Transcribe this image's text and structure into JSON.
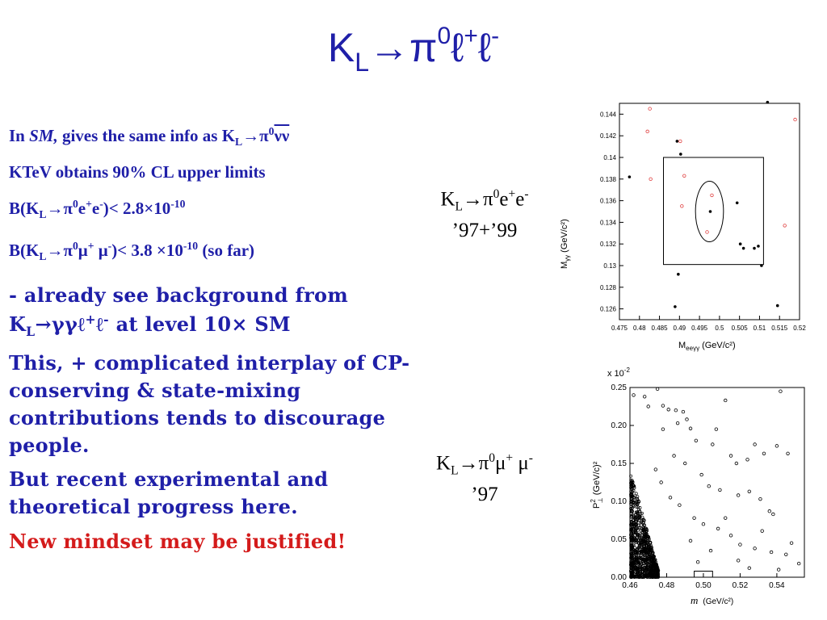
{
  "slide": {
    "title": "K_L → π⁰ ℓ⁺ ℓ⁻",
    "title_parts": {
      "k": "K",
      "k_sub": "L",
      "arrow": "→",
      "pi": "π",
      "pi_sup": "0",
      "l1": "ℓ",
      "l1_sup": "+",
      "l2": "ℓ",
      "l2_sup": "-"
    }
  },
  "body": {
    "p1": {
      "pre": "In ",
      "sm": "SM,",
      "mid": " gives the same info as K",
      "k_sub": "L",
      "arrow": "→",
      "pi": "π",
      "pi_sup": "0",
      "nu": "νν"
    },
    "p2": "KTeV obtains 90% CL upper limits",
    "p3": {
      "pre": "B(K",
      "k_sub": "L",
      "arrow": "→",
      "pi": "π",
      "pi_sup": "0",
      "e1": "e",
      "e1_sup": "+",
      "e2": "e",
      "e2_sup": "-",
      "post": ")< 2.8×10",
      "exp": "-10"
    },
    "p4": {
      "pre": "B(K",
      "k_sub": "L",
      "arrow": "→",
      "pi": "π",
      "pi_sup": "0",
      "m1": "μ",
      "m1_sup": "+",
      "m2": " μ",
      "m2_sup": "-",
      "post": ")< 3.8 ×10",
      "exp": "-10",
      "tail": " (so far)"
    },
    "p5": {
      "line1": " - already see background from",
      "k": "K",
      "k_sub": "L",
      "arrow": "→",
      "gg": "γγℓ",
      "gg_sup": "+",
      "l2": "ℓ",
      "l2_sup": "-",
      "post": " at level 10× SM"
    },
    "p6": "This, + complicated interplay of CP-conserving & state-mixing contributions tends to discourage people.",
    "p7": "But recent experimental and theoretical progress here.",
    "p8": "New mindset may be justified!"
  },
  "labels": {
    "ee": {
      "k": "K",
      "k_sub": "L",
      "arrow": "→",
      "pi": "π",
      "pi_sup": "0",
      "e1": "e",
      "e1_sup": "+",
      "e2": "e",
      "e2_sup": "-",
      "years": "’97+’99"
    },
    "mumu": {
      "k": "K",
      "k_sub": "L",
      "arrow": "→",
      "pi": "π",
      "pi_sup": "0",
      "m1": "μ",
      "m1_sup": "+",
      "m2": " μ",
      "m2_sup": "-",
      "years": "’97"
    }
  },
  "chart_data": [
    {
      "type": "scatter",
      "xlabel": "M_eeγγ (GeV/c²)",
      "ylabel": "M_γγ (GeV/c²)",
      "xlabel_main": "M",
      "xlabel_sub": "eeγγ",
      "xlabel_unit": "(GeV/c²)",
      "ylabel_main": "M",
      "ylabel_sub": "γγ",
      "ylabel_unit": "(GeV/c²)",
      "xlim": [
        0.475,
        0.52
      ],
      "ylim": [
        0.125,
        0.145
      ],
      "xticks": [
        "0.475",
        "0.48",
        "0.485",
        "0.49",
        "0.495",
        "0.5",
        "0.505",
        "0.51",
        "0.515",
        "0.52"
      ],
      "yticks": [
        "0.126",
        "0.128",
        "0.13",
        "0.132",
        "0.134",
        "0.136",
        "0.138",
        "0.14",
        "0.142",
        "0.144"
      ],
      "series": [
        {
          "name": "",
          "color": "#000000",
          "marker": "dot",
          "points": [
            [
              0.4775,
              0.1382
            ],
            [
              0.4894,
              0.1415
            ],
            [
              0.4903,
              0.1403
            ],
            [
              0.4897,
              0.1292
            ],
            [
              0.4889,
              0.1262
            ],
            [
              0.4977,
              0.135
            ],
            [
              0.5044,
              0.1358
            ],
            [
              0.5052,
              0.132
            ],
            [
              0.506,
              0.1316
            ],
            [
              0.5087,
              0.1316
            ],
            [
              0.5097,
              0.1318
            ],
            [
              0.5105,
              0.13
            ],
            [
              0.5145,
              0.1263
            ],
            [
              0.512,
              0.1451
            ]
          ]
        },
        {
          "name": "",
          "color": "#e04040",
          "marker": "open",
          "points": [
            [
              0.482,
              0.1424
            ],
            [
              0.4826,
              0.1445
            ],
            [
              0.4828,
              0.138
            ],
            [
              0.4902,
              0.1415
            ],
            [
              0.4912,
              0.1383
            ],
            [
              0.4906,
              0.1355
            ],
            [
              0.4981,
              0.1365
            ],
            [
              0.4969,
              0.1331
            ],
            [
              0.5163,
              0.1337
            ],
            [
              0.5189,
              0.1435
            ]
          ]
        }
      ],
      "signal_box": {
        "x": [
          0.486,
          0.511
        ],
        "y": [
          0.1301,
          0.14
        ]
      },
      "signal_ellipse": {
        "cx": 0.4975,
        "cy": 0.135,
        "rx": 0.0035,
        "ry": 0.0028
      }
    },
    {
      "type": "scatter",
      "xlabel": "m (GeV/c²)",
      "ylabel": "P²⊥ (GeV/c)²",
      "xlabel_main": "m",
      "xlabel_unit": "(GeV/c²)",
      "ylabel_main": "P",
      "ylabel_sup": "2",
      "ylabel_sub": "⊥",
      "ylabel_unit": "(GeV/c)²",
      "multiplier": "x 10",
      "multiplier_exp": "-2",
      "xlim": [
        0.46,
        0.555
      ],
      "ylim": [
        0.0,
        0.25
      ],
      "xticks": [
        "0.46",
        "0.48",
        "0.50",
        "0.52",
        "0.54"
      ],
      "yticks": [
        "0.00",
        "0.05",
        "0.10",
        "0.15",
        "0.20",
        "0.25"
      ],
      "series": [
        {
          "name": "",
          "color": "#000000",
          "marker": "open",
          "points": [
            [
              0.462,
              0.24
            ],
            [
              0.468,
              0.238
            ],
            [
              0.475,
              0.248
            ],
            [
              0.47,
              0.225
            ],
            [
              0.478,
              0.226
            ],
            [
              0.481,
              0.221
            ],
            [
              0.485,
              0.22
            ],
            [
              0.489,
              0.218
            ],
            [
              0.486,
              0.203
            ],
            [
              0.491,
              0.208
            ],
            [
              0.493,
              0.196
            ],
            [
              0.478,
              0.195
            ],
            [
              0.496,
              0.18
            ],
            [
              0.505,
              0.175
            ],
            [
              0.507,
              0.195
            ],
            [
              0.512,
              0.233
            ],
            [
              0.515,
              0.16
            ],
            [
              0.518,
              0.15
            ],
            [
              0.524,
              0.155
            ],
            [
              0.528,
              0.175
            ],
            [
              0.533,
              0.163
            ],
            [
              0.54,
              0.173
            ],
            [
              0.542,
              0.245
            ],
            [
              0.546,
              0.163
            ],
            [
              0.484,
              0.16
            ],
            [
              0.49,
              0.15
            ],
            [
              0.499,
              0.135
            ],
            [
              0.503,
              0.12
            ],
            [
              0.509,
              0.115
            ],
            [
              0.519,
              0.108
            ],
            [
              0.525,
              0.113
            ],
            [
              0.531,
              0.103
            ],
            [
              0.536,
              0.087
            ],
            [
              0.538,
              0.083
            ],
            [
              0.495,
              0.078
            ],
            [
              0.5,
              0.07
            ],
            [
              0.508,
              0.064
            ],
            [
              0.515,
              0.055
            ],
            [
              0.52,
              0.043
            ],
            [
              0.528,
              0.038
            ],
            [
              0.537,
              0.033
            ],
            [
              0.545,
              0.03
            ],
            [
              0.552,
              0.018
            ],
            [
              0.482,
              0.105
            ],
            [
              0.487,
              0.095
            ],
            [
              0.477,
              0.125
            ],
            [
              0.474,
              0.142
            ],
            [
              0.512,
              0.078
            ],
            [
              0.532,
              0.061
            ],
            [
              0.548,
              0.045
            ],
            [
              0.493,
              0.048
            ],
            [
              0.504,
              0.035
            ],
            [
              0.519,
              0.022
            ],
            [
              0.525,
              0.012
            ],
            [
              0.541,
              0.01
            ],
            [
              0.497,
              0.02
            ]
          ]
        }
      ],
      "signal_box": {
        "x": [
          0.495,
          0.505
        ],
        "y": [
          0.0,
          0.008
        ]
      }
    }
  ]
}
